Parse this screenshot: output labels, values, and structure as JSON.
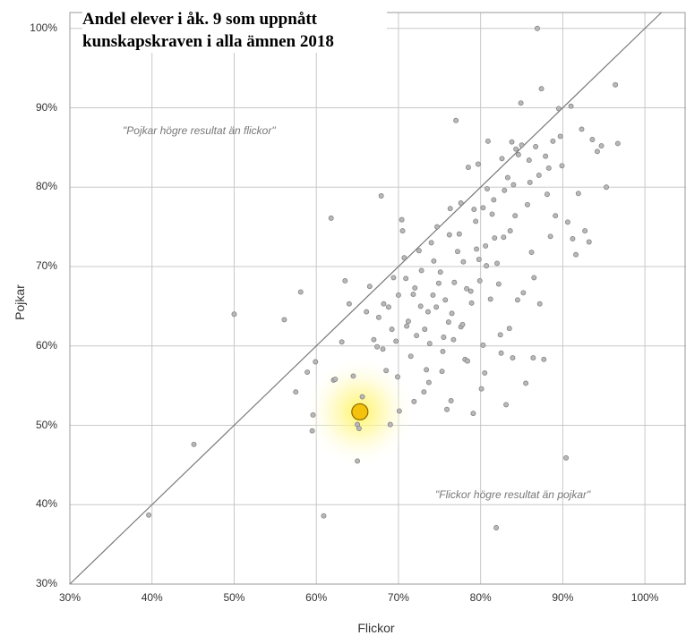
{
  "chart_data": {
    "type": "scatter",
    "title_lines": [
      "Andel elever i åk. 9 som uppnått",
      "kunskapskraven i alla ämnen 2018"
    ],
    "xlabel": "Flickor",
    "ylabel": "Pojkar",
    "xlim": [
      30,
      105
    ],
    "ylim": [
      30,
      102
    ],
    "x_ticks": [
      "30%",
      "40%",
      "50%",
      "60%",
      "70%",
      "80%",
      "90%",
      "100%"
    ],
    "y_ticks": [
      "30%",
      "40%",
      "50%",
      "60%",
      "70%",
      "80%",
      "90%",
      "100%"
    ],
    "grid": true,
    "reference_line": "y = x",
    "annotations": {
      "upper": "\"Pojkar högre resultat än flickor\"",
      "lower": "\"Flickor högre resultat än pojkar\""
    },
    "highlight": {
      "x": 65.3,
      "y": 51.7,
      "color": "#f4c20d"
    },
    "point_color": "#b8b8b8",
    "points": [
      [
        39.6,
        38.7
      ],
      [
        45.1,
        47.6
      ],
      [
        50.0,
        64.0
      ],
      [
        56.1,
        63.3
      ],
      [
        57.5,
        54.2
      ],
      [
        58.1,
        66.8
      ],
      [
        58.9,
        56.7
      ],
      [
        59.5,
        49.3
      ],
      [
        59.6,
        51.3
      ],
      [
        59.9,
        58.0
      ],
      [
        60.9,
        38.6
      ],
      [
        61.8,
        76.1
      ],
      [
        62.1,
        55.7
      ],
      [
        62.3,
        55.8
      ],
      [
        63.1,
        60.5
      ],
      [
        63.5,
        68.2
      ],
      [
        64.0,
        65.3
      ],
      [
        64.5,
        56.2
      ],
      [
        64.8,
        51.3
      ],
      [
        65.0,
        45.5
      ],
      [
        65.0,
        50.1
      ],
      [
        65.2,
        49.6
      ],
      [
        65.6,
        53.6
      ],
      [
        66.1,
        64.3
      ],
      [
        66.5,
        67.5
      ],
      [
        67.0,
        60.8
      ],
      [
        67.4,
        59.9
      ],
      [
        67.6,
        63.6
      ],
      [
        67.9,
        78.9
      ],
      [
        68.1,
        59.6
      ],
      [
        68.2,
        65.3
      ],
      [
        68.5,
        56.9
      ],
      [
        68.8,
        64.9
      ],
      [
        69.0,
        50.1
      ],
      [
        69.2,
        62.1
      ],
      [
        69.4,
        68.6
      ],
      [
        69.7,
        60.6
      ],
      [
        70.0,
        66.4
      ],
      [
        70.1,
        51.8
      ],
      [
        70.4,
        75.9
      ],
      [
        70.5,
        74.5
      ],
      [
        70.7,
        71.1
      ],
      [
        70.9,
        68.5
      ],
      [
        71.2,
        63.1
      ],
      [
        71.5,
        58.7
      ],
      [
        71.8,
        66.5
      ],
      [
        72.2,
        61.3
      ],
      [
        72.5,
        72.0
      ],
      [
        72.7,
        65.0
      ],
      [
        73.1,
        54.2
      ],
      [
        73.4,
        57.0
      ],
      [
        73.8,
        60.3
      ],
      [
        74.0,
        73.0
      ],
      [
        74.2,
        66.4
      ],
      [
        74.6,
        64.9
      ],
      [
        75.1,
        69.3
      ],
      [
        75.3,
        56.8
      ],
      [
        75.5,
        61.1
      ],
      [
        75.9,
        52.0
      ],
      [
        76.3,
        77.3
      ],
      [
        76.5,
        64.1
      ],
      [
        76.8,
        68.0
      ],
      [
        77.0,
        88.4
      ],
      [
        77.4,
        74.1
      ],
      [
        77.6,
        62.4
      ],
      [
        77.9,
        70.6
      ],
      [
        78.1,
        58.3
      ],
      [
        78.5,
        82.5
      ],
      [
        78.8,
        66.9
      ],
      [
        79.1,
        51.5
      ],
      [
        79.4,
        75.7
      ],
      [
        79.7,
        82.9
      ],
      [
        79.8,
        70.9
      ],
      [
        80.1,
        54.6
      ],
      [
        80.3,
        60.1
      ],
      [
        80.6,
        72.6
      ],
      [
        80.9,
        85.8
      ],
      [
        81.2,
        65.9
      ],
      [
        81.6,
        78.4
      ],
      [
        81.9,
        37.1
      ],
      [
        82.2,
        67.8
      ],
      [
        82.5,
        59.1
      ],
      [
        82.8,
        73.7
      ],
      [
        83.1,
        52.6
      ],
      [
        83.3,
        81.2
      ],
      [
        83.5,
        62.2
      ],
      [
        83.8,
        85.7
      ],
      [
        84.2,
        76.4
      ],
      [
        84.6,
        84.1
      ],
      [
        84.9,
        90.6
      ],
      [
        85.2,
        66.7
      ],
      [
        85.5,
        55.3
      ],
      [
        85.9,
        83.4
      ],
      [
        86.2,
        71.8
      ],
      [
        86.5,
        68.6
      ],
      [
        86.9,
        100.0
      ],
      [
        87.2,
        65.3
      ],
      [
        87.4,
        92.4
      ],
      [
        87.7,
        58.3
      ],
      [
        88.1,
        79.1
      ],
      [
        88.5,
        73.8
      ],
      [
        88.8,
        85.8
      ],
      [
        89.1,
        76.4
      ],
      [
        89.5,
        89.9
      ],
      [
        89.9,
        82.7
      ],
      [
        90.4,
        45.9
      ],
      [
        90.6,
        75.6
      ],
      [
        91.0,
        90.2
      ],
      [
        91.2,
        73.5
      ],
      [
        91.6,
        71.5
      ],
      [
        91.9,
        79.2
      ],
      [
        92.3,
        87.3
      ],
      [
        92.7,
        74.5
      ],
      [
        93.2,
        73.1
      ],
      [
        93.6,
        86.0
      ],
      [
        94.2,
        84.5
      ],
      [
        94.7,
        85.2
      ],
      [
        95.3,
        80.0
      ],
      [
        96.4,
        92.9
      ],
      [
        96.7,
        85.5
      ],
      [
        72.8,
        69.5
      ],
      [
        74.9,
        67.9
      ],
      [
        76.1,
        63.0
      ],
      [
        77.2,
        71.9
      ],
      [
        78.3,
        67.2
      ],
      [
        79.5,
        72.2
      ],
      [
        80.7,
        70.1
      ],
      [
        81.4,
        76.6
      ],
      [
        82.0,
        70.4
      ],
      [
        82.9,
        79.6
      ],
      [
        84.0,
        80.3
      ],
      [
        85.0,
        85.3
      ],
      [
        86.0,
        80.6
      ],
      [
        87.1,
        81.5
      ],
      [
        73.6,
        64.3
      ],
      [
        75.7,
        65.8
      ],
      [
        74.3,
        70.7
      ],
      [
        76.7,
        60.8
      ],
      [
        78.9,
        65.4
      ],
      [
        80.3,
        77.4
      ],
      [
        81.7,
        73.6
      ],
      [
        83.6,
        74.5
      ],
      [
        85.7,
        77.8
      ],
      [
        88.3,
        82.4
      ],
      [
        71.0,
        62.5
      ],
      [
        72.0,
        67.3
      ],
      [
        73.2,
        62.1
      ],
      [
        75.4,
        59.3
      ],
      [
        77.8,
        62.7
      ],
      [
        79.9,
        68.2
      ],
      [
        82.4,
        61.4
      ],
      [
        84.5,
        65.8
      ],
      [
        86.4,
        58.5
      ],
      [
        69.9,
        56.1
      ],
      [
        71.9,
        53.0
      ],
      [
        73.7,
        55.4
      ],
      [
        76.4,
        53.1
      ],
      [
        78.4,
        58.1
      ],
      [
        80.5,
        56.6
      ],
      [
        83.9,
        58.5
      ],
      [
        74.7,
        75.0
      ],
      [
        76.2,
        74.0
      ],
      [
        77.6,
        78.0
      ],
      [
        79.2,
        77.2
      ],
      [
        80.8,
        79.8
      ],
      [
        82.6,
        83.6
      ],
      [
        84.3,
        84.8
      ],
      [
        86.7,
        85.1
      ],
      [
        87.9,
        83.9
      ],
      [
        89.7,
        86.4
      ]
    ]
  }
}
